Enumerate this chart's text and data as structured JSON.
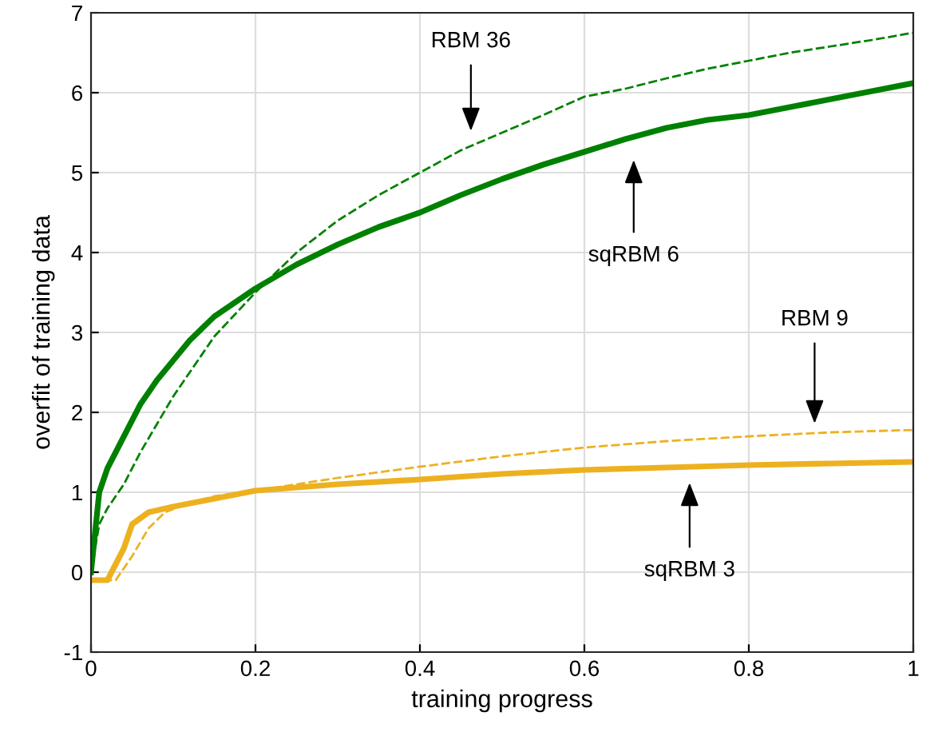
{
  "chart_data": {
    "type": "line",
    "xlabel": "training progress",
    "ylabel": "overfit of training data",
    "xlim": [
      0,
      1
    ],
    "ylim": [
      -1,
      7
    ],
    "xticks": [
      0,
      0.2,
      0.4,
      0.6,
      0.8,
      1
    ],
    "yticks": [
      -1,
      0,
      1,
      2,
      3,
      4,
      5,
      6,
      7
    ],
    "grid": true,
    "legend": false,
    "series": [
      {
        "color": "#008000",
        "line_style": "solid",
        "x": [
          0,
          0.005,
          0.01,
          0.02,
          0.04,
          0.06,
          0.08,
          0.1,
          0.12,
          0.15,
          0.2,
          0.25,
          0.3,
          0.35,
          0.4,
          0.45,
          0.5,
          0.55,
          0.6,
          0.65,
          0.7,
          0.75,
          0.8,
          0.85,
          0.9,
          0.95,
          1
        ],
        "values": [
          0,
          0.5,
          1.0,
          1.3,
          1.7,
          2.1,
          2.4,
          2.65,
          2.9,
          3.2,
          3.55,
          3.85,
          4.1,
          4.32,
          4.5,
          4.72,
          4.92,
          5.1,
          5.26,
          5.42,
          5.56,
          5.66,
          5.72,
          5.82,
          5.92,
          6.02,
          6.12
        ]
      },
      {
        "color": "#008000",
        "line_style": "dashed",
        "x": [
          0,
          0.01,
          0.02,
          0.04,
          0.06,
          0.08,
          0.1,
          0.12,
          0.15,
          0.2,
          0.25,
          0.3,
          0.35,
          0.4,
          0.45,
          0.5,
          0.55,
          0.6,
          0.65,
          0.7,
          0.75,
          0.8,
          0.85,
          0.9,
          0.95,
          1
        ],
        "values": [
          0,
          0.6,
          0.8,
          1.1,
          1.5,
          1.85,
          2.2,
          2.5,
          2.95,
          3.5,
          4.0,
          4.4,
          4.72,
          5.0,
          5.28,
          5.5,
          5.72,
          5.95,
          6.05,
          6.18,
          6.3,
          6.4,
          6.5,
          6.58,
          6.66,
          6.75
        ]
      },
      {
        "color": "#edb120",
        "line_style": "solid",
        "x": [
          0,
          0.02,
          0.04,
          0.05,
          0.07,
          0.1,
          0.15,
          0.2,
          0.3,
          0.4,
          0.5,
          0.6,
          0.7,
          0.8,
          0.9,
          1
        ],
        "values": [
          -0.1,
          -0.1,
          0.3,
          0.6,
          0.75,
          0.82,
          0.92,
          1.02,
          1.1,
          1.16,
          1.23,
          1.28,
          1.31,
          1.34,
          1.36,
          1.38
        ]
      },
      {
        "color": "#edb120",
        "line_style": "dashed",
        "x": [
          0,
          0.03,
          0.05,
          0.07,
          0.09,
          0.12,
          0.15,
          0.2,
          0.3,
          0.4,
          0.5,
          0.6,
          0.7,
          0.8,
          0.9,
          1
        ],
        "values": [
          -0.1,
          -0.1,
          0.2,
          0.55,
          0.75,
          0.87,
          0.95,
          1.02,
          1.18,
          1.32,
          1.45,
          1.56,
          1.64,
          1.7,
          1.75,
          1.78
        ]
      }
    ],
    "annotations": [
      "RBM 36",
      "sqRBM 6",
      "RBM 9",
      "sqRBM 3"
    ]
  }
}
